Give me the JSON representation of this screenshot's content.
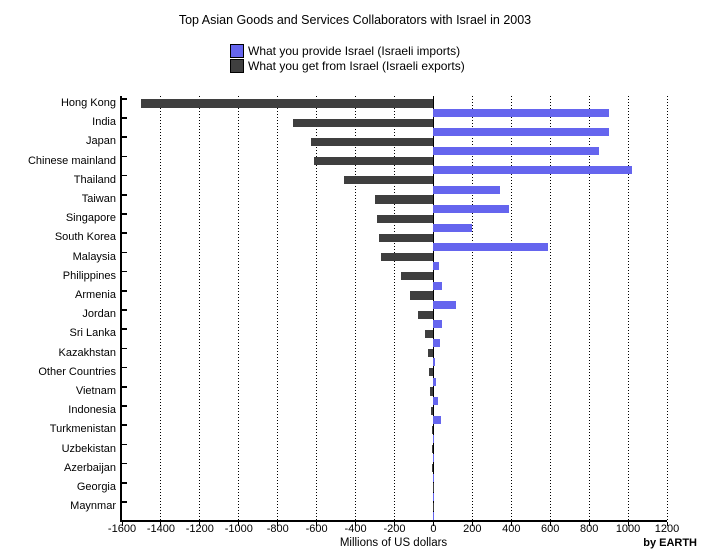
{
  "title": "Top Asian Goods and Services Collaborators with Israel in 2003",
  "legend": {
    "items": [
      {
        "label": "What you provide Israel (Israeli imports)",
        "color": "#6565ee"
      },
      {
        "label": "What you get from Israel (Israeli exports)",
        "color": "#3f3f3f"
      }
    ]
  },
  "footer": {
    "credit": "by EARTH"
  },
  "chart_data": {
    "type": "bar",
    "orientation": "horizontal",
    "title": "Top Asian Goods and Services Collaborators with Israel in 2003",
    "xlabel": "Millions of US dollars",
    "xlim": [
      -1600,
      1200
    ],
    "xticks": [
      -1600,
      -1400,
      -1200,
      -1000,
      -800,
      -600,
      -400,
      -200,
      0,
      200,
      400,
      600,
      800,
      1000,
      1200
    ],
    "grid": "vertical-dotted",
    "legend_position": "top-center",
    "units": "Millions of US dollars",
    "categories": [
      "Hong Kong",
      "India",
      "Japan",
      "Chinese mainland",
      "Thailand",
      "Taiwan",
      "Singapore",
      "South Korea",
      "Malaysia",
      "Philippines",
      "Armenia",
      "Jordan",
      "Sri Lanka",
      "Kazakhstan",
      "Other Countries",
      "Vietnam",
      "Indonesia",
      "Turkmenistan",
      "Uzbekistan",
      "Azerbaijan",
      "Georgia",
      "Maynmar"
    ],
    "series": [
      {
        "name": "What you provide Israel (Israeli imports)",
        "color": "#6565ee",
        "values": [
          900,
          900,
          850,
          1020,
          340,
          390,
          200,
          590,
          30,
          45,
          115,
          45,
          35,
          8,
          15,
          25,
          40,
          3,
          3,
          3,
          2,
          1
        ]
      },
      {
        "name": "What you get from Israel (Israeli exports)",
        "color": "#3f3f3f",
        "values": [
          -1500,
          -720,
          -630,
          -615,
          -460,
          -300,
          -290,
          -280,
          -270,
          -165,
          -120,
          -80,
          -45,
          -30,
          -25,
          -20,
          -15,
          -7,
          -5,
          -5,
          -4,
          -2
        ]
      }
    ]
  }
}
